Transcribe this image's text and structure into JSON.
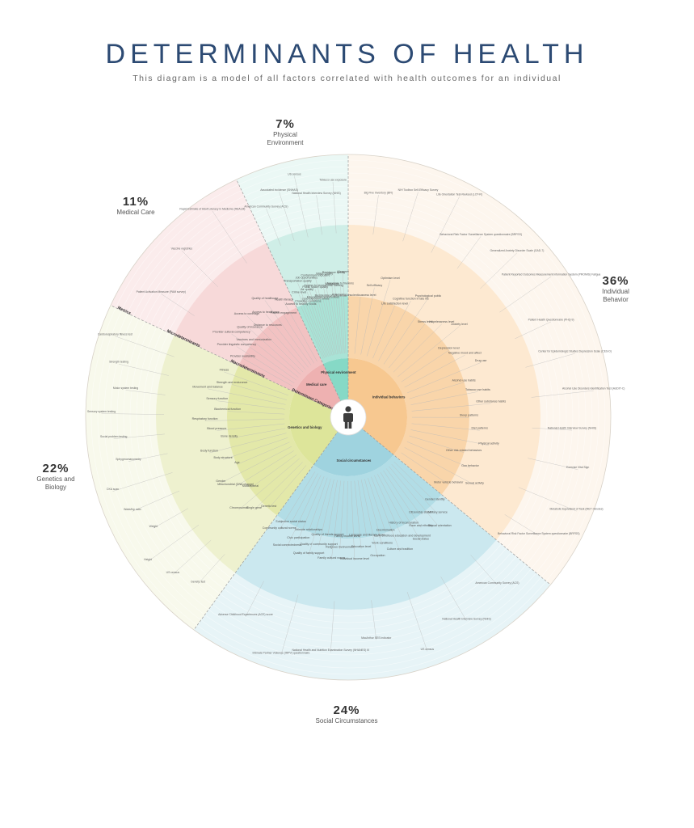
{
  "header": {
    "title": "DETERMINANTS OF HEALTH",
    "subtitle": "This diagram is a model of all factors correlated with health outcomes for an individual"
  },
  "segments": [
    {
      "key": "behavior",
      "percent": "36%",
      "label": "Individual Behavior",
      "share": 36,
      "color_outer": "#fdf6ee",
      "color_mid": "#fde9d1",
      "color_inner": "#f9d5aa",
      "color_core": "#f7c890",
      "core_label": "Individual behaviors"
    },
    {
      "key": "social",
      "percent": "24%",
      "label": "Social Circumstances",
      "share": 24,
      "color_outer": "#e7f4f7",
      "color_mid": "#cbe8ef",
      "color_inner": "#b2dde6",
      "color_core": "#9fd3df",
      "core_label": "Social circumstances"
    },
    {
      "key": "genetics",
      "percent": "22%",
      "label": "Genetics and Biology",
      "share": 22,
      "color_outer": "#f8f9ec",
      "color_mid": "#eef1cf",
      "color_inner": "#e3e8a9",
      "color_core": "#dde59a",
      "core_label": "Genetics and biology"
    },
    {
      "key": "medical",
      "percent": "11%",
      "label": "Medical Care",
      "share": 11,
      "color_outer": "#fbecec",
      "color_mid": "#f7d9d9",
      "color_inner": "#f2c2c2",
      "color_core": "#eeb1b1",
      "core_label": "Medical care"
    },
    {
      "key": "physical",
      "percent": "7%",
      "label": "Physical Environment",
      "share": 7,
      "color_outer": "#ebf8f5",
      "color_mid": "#cfeee7",
      "color_inner": "#a9e3d6",
      "color_core": "#86d9c6",
      "core_label": "Physical environment"
    }
  ],
  "ring_labels": {
    "metrics": "Metrics",
    "microdeterminants": "Microdeterminants",
    "macrodeterminants": "Macrodeterminants",
    "categories": "Determinant Categories"
  },
  "factors": {
    "behavior": [
      "Conscientiousness level",
      "Self-efficacy",
      "Optimism level",
      "Life satisfaction level",
      "Cognitive function in late life",
      "Psychological public",
      "Stress level",
      "Hopelessness level",
      "Anxiety level",
      "Depression level",
      "Negative mood and affect",
      "Drug use",
      "Alcohol use habits",
      "Tobacco use habits",
      "Other substance habits",
      "Sleep patterns",
      "Diet patterns",
      "Physical activity",
      "Other risk-related behaviors",
      "Gun behavior",
      "Sexual activity",
      "Motor vehicle behavior"
    ],
    "behavior_metrics": [
      "Big Five Inventory (BFI)",
      "NIH Toolbox Self-Efficacy Survey",
      "Life Orientation Test-Revised (LOT-R)",
      "Behavioral Risk Factor Surveillance System questionnaire (BRFSS)",
      "Generalized Anxiety Disorder Scale (GAD-7)",
      "Patient Reported Outcomes Measurement Information System (PROMIS) Fatigue",
      "Patient Health Questionnaire (PHQ-9)",
      "Center for Epidemiologic Studies Depression Scale (CES-D)",
      "Alcohol Use Disorders Identification Test (AUDIT-C)",
      "National Health Interview Survey (NHIS)",
      "Exercise Vital Sign",
      "Metabolic Equivalent of Task (MET minutes)",
      "Behavioral Risk Factor Surveillance System questionnaire (BRFSS)"
    ],
    "social": [
      "Gender identity",
      "Military service",
      "Sexual orientation",
      "Citizenship status",
      "Race and ethnicity",
      "Social status",
      "History of incarceration",
      "Early childhood education and development",
      "Culture and tradition",
      "Discrimination",
      "Work conditions",
      "Occupation",
      "Language and literacy level",
      "Education level",
      "Individual income level",
      "Family income level",
      "Religious involvement",
      "Family cultural norms",
      "Quality of friends support",
      "Quality of community support",
      "Quality of family support",
      "Intimate relationships",
      "Civic participation",
      "Social connectedness",
      "Subjective social status",
      "Community cultural norms"
    ],
    "social_metrics": [
      "American Community Survey (ACS)",
      "National Health Interview Survey (NHIS)",
      "US census",
      "MacArthur SES Indicator",
      "National Health and Nutrition Examination Survey (NHANES) III",
      "Intimate Partner Violence (IMPV) questionnaire",
      "Adverse Childhood Experiences (ACE) score"
    ],
    "genetics": [
      "Genetic test",
      "Single gene",
      "Chromosomal",
      "Multifactorial",
      "Mitochondrial (DNA change)",
      "Gender",
      "Age",
      "Body structure",
      "Body function",
      "Bone density",
      "Blood pressure",
      "Respiratory function",
      "Biochemical function",
      "Sensory function",
      "Movement and balance",
      "Strength and endurance",
      "Fitness"
    ],
    "genetics_metrics": [
      "Genetic test",
      "US census",
      "Height",
      "Weight",
      "Waist/hip ratio",
      "DXA scan",
      "Sphygmomanometry",
      "Social problem testing",
      "Sensory system testing",
      "Motor system testing",
      "Strength testing",
      "Cardiorespiratory fitness test"
    ],
    "medical": [
      "Provider availability",
      "Provider linguistic competency",
      "Provider cultural competency",
      "Vaccines and immunization",
      "Quality of insurance",
      "Access to coverage",
      "Distance to resources",
      "Access to healthcare",
      "Quality of healthcare",
      "Patient engagement",
      "Health literacy"
    ],
    "medical_metrics": [
      "Patient Activation Measure (PAM survey)",
      "Vaccine registries",
      "Rapid Estimate of Adult Literacy in Medicine (REALM)"
    ],
    "physical": [
      "Access to healthy foods",
      "Crime level",
      "Transportation quality",
      "Crowding conditions",
      "Air quality",
      "Job opportunities",
      "Lead exposure levels",
      "Public space quality",
      "Contaminant exposure",
      "Educational opportunities",
      "Access to recreational training",
      "Water quality",
      "Residential priority areas",
      "Walkability",
      "Residence quality",
      "Pollutants",
      "Exposure to firearms",
      "Allergens"
    ],
    "physical_metrics": [
      "American Community Survey (ACS)",
      "Associated incidence (SNHAS)",
      "US census",
      "National Health Interview Survey (NHIS)",
      "Tobacco use exposure"
    ]
  }
}
